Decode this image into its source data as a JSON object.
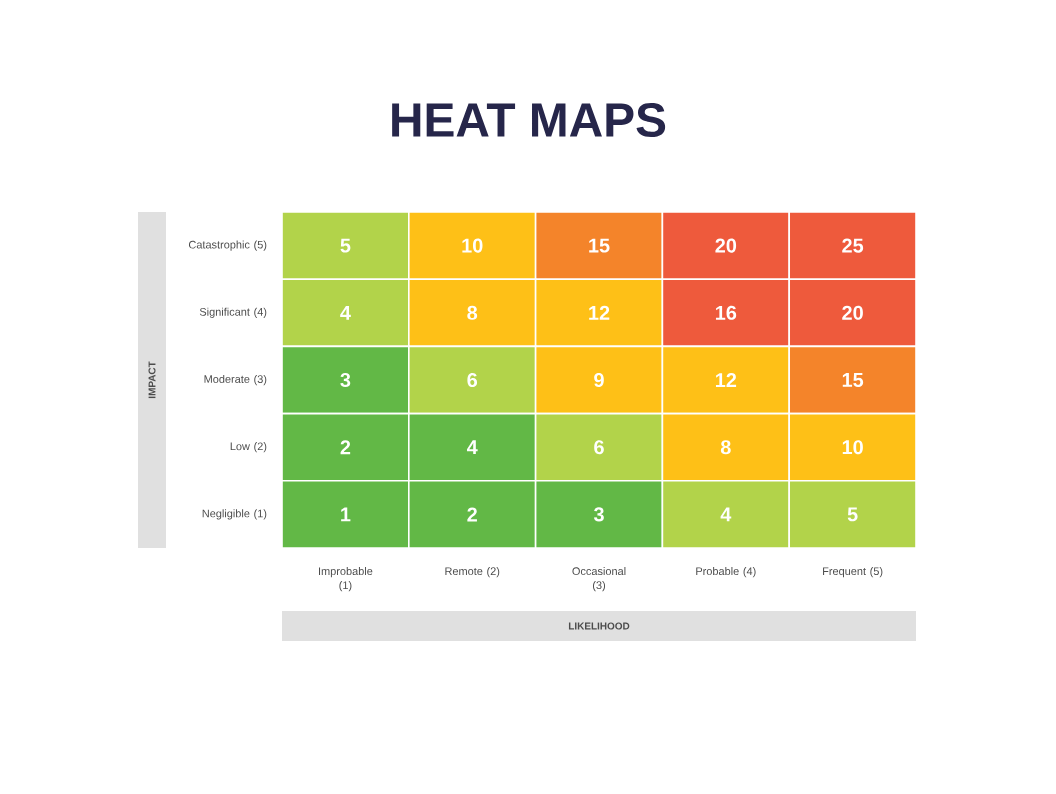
{
  "chart_data": {
    "type": "heatmap",
    "data_labels": true,
    "title": "HEAT MAPS",
    "xlabel": "LIKELIHOOD",
    "ylabel": "IMPACT",
    "categories": [
      "Improbable (1)",
      "Remote (2)",
      "Occasional (3)",
      "Probable (4)",
      "Frequent (5)"
    ],
    "y_categories": [
      "Catastrophic (5)",
      "Significant (4)",
      "Moderate (3)",
      "Low (2)",
      "Negligible (1)"
    ],
    "cells": [
      [
        5,
        10,
        15,
        20,
        25
      ],
      [
        4,
        8,
        12,
        16,
        20
      ],
      [
        3,
        6,
        9,
        12,
        15
      ],
      [
        2,
        4,
        6,
        8,
        10
      ],
      [
        1,
        2,
        3,
        4,
        5
      ]
    ],
    "colors": [
      [
        "#b2d34a",
        "#fec017",
        "#f4842a",
        "#ee5a3c",
        "#ee5a3c"
      ],
      [
        "#b2d34a",
        "#fec017",
        "#fec017",
        "#ee5a3c",
        "#ee5a3c"
      ],
      [
        "#62b846",
        "#b2d34a",
        "#fec017",
        "#fec017",
        "#f4842a"
      ],
      [
        "#62b846",
        "#62b846",
        "#b2d34a",
        "#fec017",
        "#fec017"
      ],
      [
        "#62b846",
        "#62b846",
        "#62b846",
        "#b2d34a",
        "#b2d34a"
      ]
    ]
  }
}
